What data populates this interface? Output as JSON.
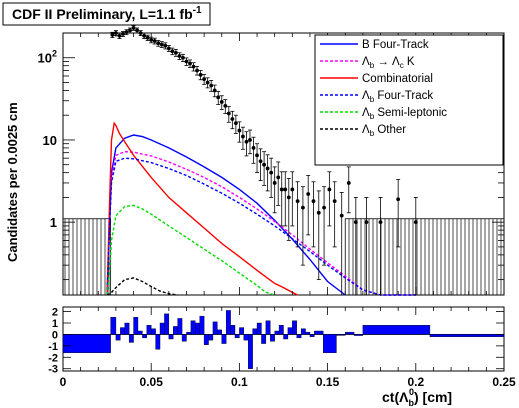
{
  "header": {
    "title_main": "CDF II Preliminary, L=1.1 fb",
    "title_sup": "-1"
  },
  "colors": {
    "b_four_track": "#0000ff",
    "lb_lcK": "#ff00ff",
    "combinatorial": "#ff0000",
    "lb_four_track": "#0000ff",
    "lb_semileptonic": "#00dd00",
    "lb_other": "#000000",
    "data": "#000000",
    "residual": "#0000ff"
  },
  "chart_data": [
    {
      "type": "line",
      "role": "main",
      "ylabel": "Candidates per 0.0025 cm",
      "yscale": "log",
      "xlim": [
        0,
        0.25
      ],
      "ylim": [
        0.13,
        200
      ],
      "yticks": [
        {
          "value": 100,
          "base": "10",
          "exp": "2"
        },
        {
          "value": 10,
          "base": "10",
          "exp": ""
        },
        {
          "value": 1,
          "base": "1",
          "exp": ""
        }
      ],
      "legend_position": "top-right",
      "series": [
        {
          "name": "B Four-Track",
          "style": "solid",
          "color": "#0000ff",
          "x": [
            0.025,
            0.0265,
            0.0275,
            0.03,
            0.035,
            0.04,
            0.045,
            0.05,
            0.06,
            0.07,
            0.08,
            0.09,
            0.1,
            0.11,
            0.12,
            0.13,
            0.14,
            0.15,
            0.16
          ],
          "y": [
            0.13,
            1.0,
            4.0,
            8.0,
            10.5,
            11.5,
            11.0,
            10.0,
            8.0,
            6.2,
            4.7,
            3.5,
            2.5,
            1.7,
            1.05,
            0.62,
            0.35,
            0.19,
            0.13
          ]
        },
        {
          "name_parts": [
            "Λ",
            "b",
            " → Λ",
            "c",
            " K"
          ],
          "style": "dashed",
          "color": "#ff00ff",
          "x": [
            0.025,
            0.0265,
            0.0275,
            0.03,
            0.035,
            0.04,
            0.05,
            0.06,
            0.07,
            0.08,
            0.09,
            0.1,
            0.11,
            0.12,
            0.13,
            0.14,
            0.15,
            0.16,
            0.17,
            0.18,
            0.19,
            0.2
          ],
          "y": [
            0.13,
            1.0,
            3.5,
            6.5,
            7.2,
            7.1,
            6.4,
            5.4,
            4.4,
            3.5,
            2.7,
            2.0,
            1.45,
            1.02,
            0.7,
            0.47,
            0.32,
            0.22,
            0.15,
            0.13,
            0.13,
            0.13
          ]
        },
        {
          "name": "Combinatorial",
          "style": "solid",
          "color": "#ff0000",
          "x": [
            0.025,
            0.0265,
            0.0275,
            0.029,
            0.03,
            0.032,
            0.035,
            0.04,
            0.05,
            0.06,
            0.07,
            0.08,
            0.09,
            0.1,
            0.11,
            0.12,
            0.125,
            0.13,
            0.133
          ],
          "y": [
            0.13,
            2.0,
            10.0,
            16.0,
            15.0,
            12.0,
            9.5,
            6.5,
            3.5,
            2.0,
            1.3,
            0.85,
            0.55,
            0.38,
            0.26,
            0.18,
            0.16,
            0.14,
            0.13
          ]
        },
        {
          "name_parts": [
            "Λ",
            "b",
            " Four-Track"
          ],
          "style": "dashed",
          "color": "#0000ff",
          "x": [
            0.025,
            0.0265,
            0.0275,
            0.03,
            0.035,
            0.04,
            0.05,
            0.06,
            0.07,
            0.08,
            0.09,
            0.1,
            0.11,
            0.12,
            0.13,
            0.14,
            0.15,
            0.16,
            0.17,
            0.18,
            0.19,
            0.2
          ],
          "y": [
            0.13,
            1.0,
            3.0,
            5.5,
            6.0,
            5.9,
            5.3,
            4.5,
            3.7,
            2.9,
            2.25,
            1.7,
            1.25,
            0.9,
            0.63,
            0.44,
            0.3,
            0.21,
            0.15,
            0.13,
            0.13,
            0.13
          ]
        },
        {
          "name_parts": [
            "Λ",
            "b",
            " Semi-leptonic"
          ],
          "style": "dashed",
          "color": "#00dd00",
          "x": [
            0.025,
            0.0265,
            0.0275,
            0.03,
            0.035,
            0.04,
            0.045,
            0.05,
            0.06,
            0.07,
            0.08,
            0.09,
            0.1,
            0.11,
            0.115,
            0.12
          ],
          "y": [
            0.13,
            0.25,
            0.6,
            1.2,
            1.55,
            1.6,
            1.45,
            1.25,
            0.9,
            0.65,
            0.47,
            0.34,
            0.24,
            0.17,
            0.14,
            0.13
          ]
        },
        {
          "name_parts": [
            "Λ",
            "b",
            " Other"
          ],
          "style": "dashed",
          "color": "#000000",
          "x": [
            0.025,
            0.0275,
            0.03,
            0.035,
            0.04,
            0.045,
            0.05,
            0.055,
            0.06,
            0.065
          ],
          "y": [
            0.13,
            0.14,
            0.16,
            0.2,
            0.21,
            0.19,
            0.165,
            0.145,
            0.135,
            0.13
          ]
        }
      ],
      "data_points": {
        "x": [
          0.028,
          0.03,
          0.032,
          0.034,
          0.036,
          0.038,
          0.04,
          0.042,
          0.044,
          0.046,
          0.048,
          0.05,
          0.052,
          0.054,
          0.056,
          0.058,
          0.06,
          0.062,
          0.064,
          0.066,
          0.068,
          0.07,
          0.072,
          0.074,
          0.076,
          0.078,
          0.08,
          0.082,
          0.084,
          0.086,
          0.088,
          0.09,
          0.092,
          0.094,
          0.096,
          0.098,
          0.1,
          0.102,
          0.104,
          0.106,
          0.108,
          0.11,
          0.112,
          0.114,
          0.116,
          0.118,
          0.12,
          0.122,
          0.124,
          0.126,
          0.128,
          0.13,
          0.133,
          0.136,
          0.139,
          0.142,
          0.145,
          0.148,
          0.151,
          0.154,
          0.158,
          0.162,
          0.166,
          0.172,
          0.18,
          0.19,
          0.2
        ],
        "y": [
          190,
          200,
          185,
          195,
          205,
          215,
          230,
          215,
          200,
          185,
          175,
          165,
          160,
          150,
          145,
          140,
          130,
          120,
          115,
          105,
          100,
          90,
          85,
          78,
          70,
          62,
          55,
          50,
          46,
          40,
          33,
          29,
          26,
          21,
          18,
          16,
          13,
          11,
          9.5,
          10,
          8,
          6.5,
          5.5,
          5,
          4.5,
          4,
          3,
          3.5,
          2.5,
          2.5,
          2,
          2.5,
          1.8,
          1.5,
          2.2,
          1.8,
          1.3,
          1.5,
          2.5,
          1.8,
          1.2,
          3.0,
          1.0,
          1.0,
          1.0,
          1.9,
          1.0
        ],
        "err": [
          14,
          14,
          14,
          14,
          14,
          15,
          15,
          15,
          14,
          14,
          13,
          13,
          13,
          12,
          12,
          12,
          11,
          11,
          11,
          10,
          10,
          9.5,
          9,
          9,
          8.5,
          8,
          7.5,
          7,
          7,
          6.5,
          6,
          5.5,
          5,
          4.6,
          4.3,
          4,
          3.6,
          3.3,
          3.1,
          3.2,
          2.8,
          2.5,
          2.3,
          2.2,
          2.1,
          2.0,
          1.7,
          1.9,
          1.6,
          1.6,
          1.4,
          1.6,
          1.3,
          1.2,
          1.5,
          1.3,
          1.1,
          1.2,
          1.6,
          1.3,
          1.1,
          1.7,
          1.0,
          1.0,
          1.0,
          1.4,
          1.0
        ]
      },
      "error_band": {
        "x_ranges": [
          [
            0,
            0.027
          ],
          [
            0.16,
            0.25
          ]
        ],
        "y": 1.1
      }
    },
    {
      "type": "bar",
      "role": "residual",
      "xlabel_prefix": "ct(",
      "xlabel_lambda": "Λ",
      "xlabel_sub": "b",
      "xlabel_sup": "0",
      "xlabel_suffix": ") [cm]",
      "xlim": [
        0,
        0.25
      ],
      "ylim": [
        -3.2,
        2.4
      ],
      "xticks": [
        "0",
        "0.05",
        "0.1",
        "0.15",
        "0.2",
        "0.25"
      ],
      "yticks": [
        "2",
        "1",
        "0",
        "-1",
        "-2",
        "-3"
      ],
      "bins": [
        [
          0.0,
          0.027,
          -1.6
        ],
        [
          0.027,
          0.03,
          1.5
        ],
        [
          0.03,
          0.0325,
          -0.5
        ],
        [
          0.0325,
          0.035,
          0.6
        ],
        [
          0.035,
          0.0375,
          1.0
        ],
        [
          0.0375,
          0.04,
          -0.7
        ],
        [
          0.04,
          0.0425,
          1.5
        ],
        [
          0.0425,
          0.045,
          0.3
        ],
        [
          0.045,
          0.0475,
          -0.3
        ],
        [
          0.0475,
          0.05,
          0.8
        ],
        [
          0.05,
          0.0525,
          0.5
        ],
        [
          0.0525,
          0.055,
          -1.3
        ],
        [
          0.055,
          0.0575,
          1.0
        ],
        [
          0.0575,
          0.06,
          1.8
        ],
        [
          0.06,
          0.0625,
          -0.4
        ],
        [
          0.0625,
          0.065,
          0.7
        ],
        [
          0.065,
          0.0675,
          1.4
        ],
        [
          0.0675,
          0.07,
          -0.6
        ],
        [
          0.07,
          0.0725,
          0.2
        ],
        [
          0.0725,
          0.075,
          1.2
        ],
        [
          0.075,
          0.0775,
          1.0
        ],
        [
          0.0775,
          0.08,
          1.6
        ],
        [
          0.08,
          0.0825,
          -0.9
        ],
        [
          0.0825,
          0.085,
          -0.5
        ],
        [
          0.085,
          0.0875,
          1.1
        ],
        [
          0.0875,
          0.09,
          0.4
        ],
        [
          0.09,
          0.0925,
          -0.8
        ],
        [
          0.0925,
          0.095,
          2.1
        ],
        [
          0.095,
          0.0975,
          0.8
        ],
        [
          0.0975,
          0.1,
          -0.3
        ],
        [
          0.1,
          0.1025,
          0.6
        ],
        [
          0.1025,
          0.105,
          -0.5
        ],
        [
          0.105,
          0.1075,
          -3.0
        ],
        [
          0.1075,
          0.11,
          0.5
        ],
        [
          0.11,
          0.1125,
          1.0
        ],
        [
          0.1125,
          0.115,
          -0.8
        ],
        [
          0.115,
          0.1175,
          1.2
        ],
        [
          0.1175,
          0.12,
          -0.6
        ],
        [
          0.12,
          0.1225,
          0.3
        ],
        [
          0.1225,
          0.125,
          0.8
        ],
        [
          0.125,
          0.1275,
          -0.4
        ],
        [
          0.1275,
          0.13,
          0.6
        ],
        [
          0.13,
          0.1325,
          1.2
        ],
        [
          0.1325,
          0.135,
          -0.3
        ],
        [
          0.135,
          0.1375,
          0.5
        ],
        [
          0.1375,
          0.14,
          0.2
        ],
        [
          0.14,
          0.1425,
          -0.2
        ],
        [
          0.1425,
          0.1475,
          0.3
        ],
        [
          0.1475,
          0.155,
          -1.6
        ],
        [
          0.155,
          0.16,
          0.0
        ],
        [
          0.16,
          0.165,
          0.2
        ],
        [
          0.165,
          0.17,
          -0.1
        ],
        [
          0.17,
          0.208,
          0.8
        ],
        [
          0.208,
          0.25,
          -0.2
        ]
      ]
    }
  ]
}
